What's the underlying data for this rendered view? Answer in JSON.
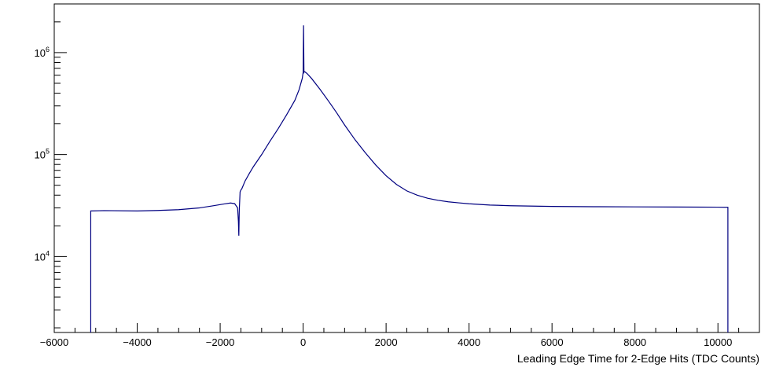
{
  "chart_data": {
    "type": "line",
    "title": "",
    "xlabel": "Leading Edge Time for 2-Edge Hits (TDC Counts)",
    "ylabel": "",
    "xlim": [
      -6000,
      11000
    ],
    "ylim": [
      1800,
      3000000
    ],
    "yscale": "log",
    "grid": false,
    "legend": "none",
    "line_color": "#000080",
    "x_ticks": [
      {
        "value": -6000,
        "label": "−6000"
      },
      {
        "value": -4000,
        "label": "−4000"
      },
      {
        "value": -2000,
        "label": "−2000"
      },
      {
        "value": 0,
        "label": "0"
      },
      {
        "value": 2000,
        "label": "2000"
      },
      {
        "value": 4000,
        "label": "4000"
      },
      {
        "value": 6000,
        "label": "6000"
      },
      {
        "value": 8000,
        "label": "8000"
      },
      {
        "value": 10000,
        "label": "10000"
      }
    ],
    "y_ticks": [
      {
        "value": 10000,
        "base": "10",
        "exp": "4"
      },
      {
        "value": 100000,
        "base": "10",
        "exp": "5"
      },
      {
        "value": 1000000,
        "base": "10",
        "exp": "6"
      }
    ],
    "series": [
      {
        "x": [
          -5120,
          -5120,
          -4800,
          -4000,
          -3500,
          -3000,
          -2500,
          -2200,
          -1900,
          -1750,
          -1650,
          -1580,
          -1560,
          -1550,
          -1540,
          -1520,
          -1500,
          -1480,
          -1400,
          -1300,
          -1200,
          -1000,
          -800,
          -600,
          -400,
          -200,
          -100,
          -20,
          0,
          10,
          20,
          30,
          50,
          100,
          200,
          400,
          600,
          800,
          1000,
          1250,
          1500,
          1750,
          2000,
          2250,
          2500,
          2750,
          3000,
          3250,
          3500,
          3750,
          4000,
          4500,
          5000,
          6000,
          7000,
          8000,
          9000,
          10000,
          10240,
          10240
        ],
        "y": [
          1800,
          28000,
          28200,
          28000,
          28300,
          28800,
          30000,
          31300,
          32800,
          33500,
          33000,
          30000,
          22000,
          16000,
          28000,
          43000,
          45000,
          46000,
          55000,
          65000,
          76000,
          100000,
          135000,
          180000,
          245000,
          340000,
          430000,
          560000,
          640000,
          1850000,
          640000,
          650000,
          645000,
          620000,
          560000,
          440000,
          340000,
          260000,
          195000,
          140000,
          104000,
          79000,
          62000,
          51000,
          44000,
          40000,
          37300,
          35600,
          34400,
          33600,
          32900,
          32000,
          31500,
          31000,
          30800,
          30700,
          30600,
          30500,
          30400,
          1800
        ]
      }
    ]
  }
}
